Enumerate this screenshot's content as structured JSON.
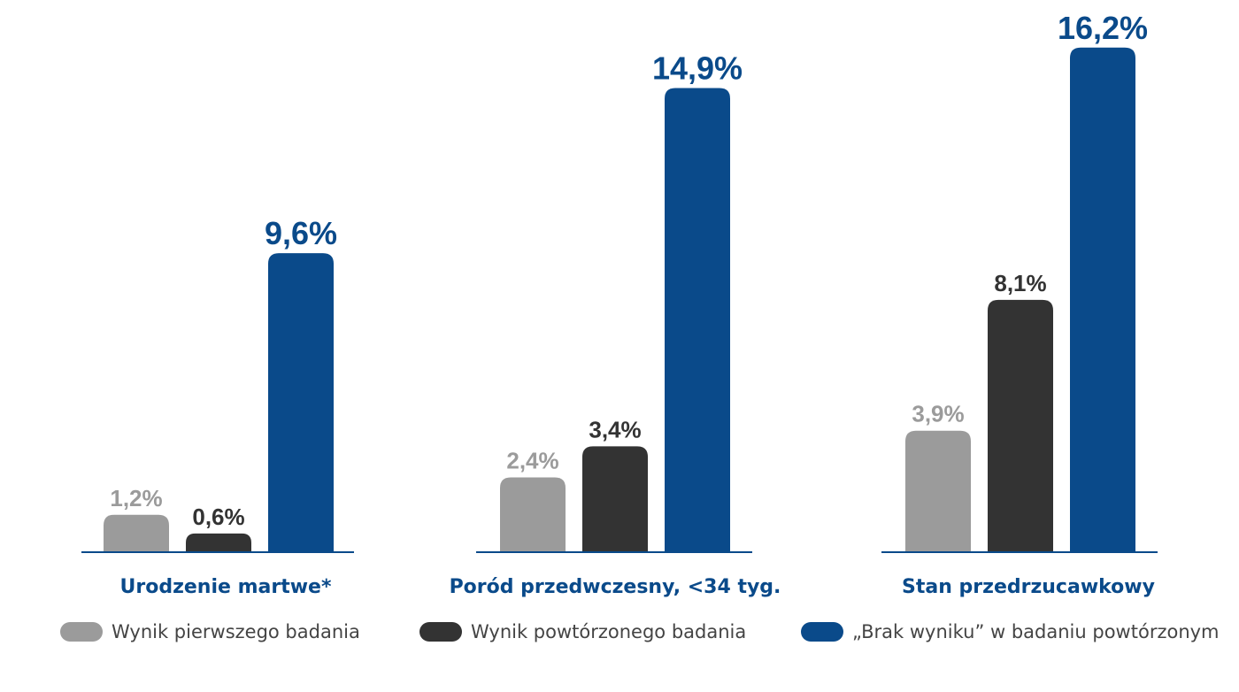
{
  "chart_data": {
    "type": "bar",
    "categories": [
      "Urodzenie martwe*",
      "Poród przedwczesny, <34 tyg.",
      "Stan przedrzucawkowy"
    ],
    "series": [
      {
        "name": "Wynik pierwszego badania",
        "values": [
          1.2,
          2.4,
          3.9
        ],
        "labels": [
          "1,2%",
          "2,4%",
          "3,9%"
        ],
        "color": "#9b9b9b"
      },
      {
        "name": "Wynik powtórzonego badania",
        "values": [
          0.6,
          3.4,
          8.1
        ],
        "labels": [
          "0,6%",
          "3,4%",
          "8,1%"
        ],
        "color": "#333333"
      },
      {
        "name": "„Brak wyniku” w badaniu powtórzonym",
        "values": [
          9.6,
          14.9,
          16.2
        ],
        "labels": [
          "9,6%",
          "14,9%",
          "16,2%"
        ],
        "color": "#0a4a8a"
      }
    ],
    "value_label_colors": [
      "#9b9b9b",
      "#333333",
      "#0a4a8a"
    ],
    "category_label_color": "#0a4a8a",
    "baseline_color": "#0a4a8a",
    "grid": false,
    "legend_position": "bottom",
    "xlabel": "",
    "ylabel": ""
  }
}
